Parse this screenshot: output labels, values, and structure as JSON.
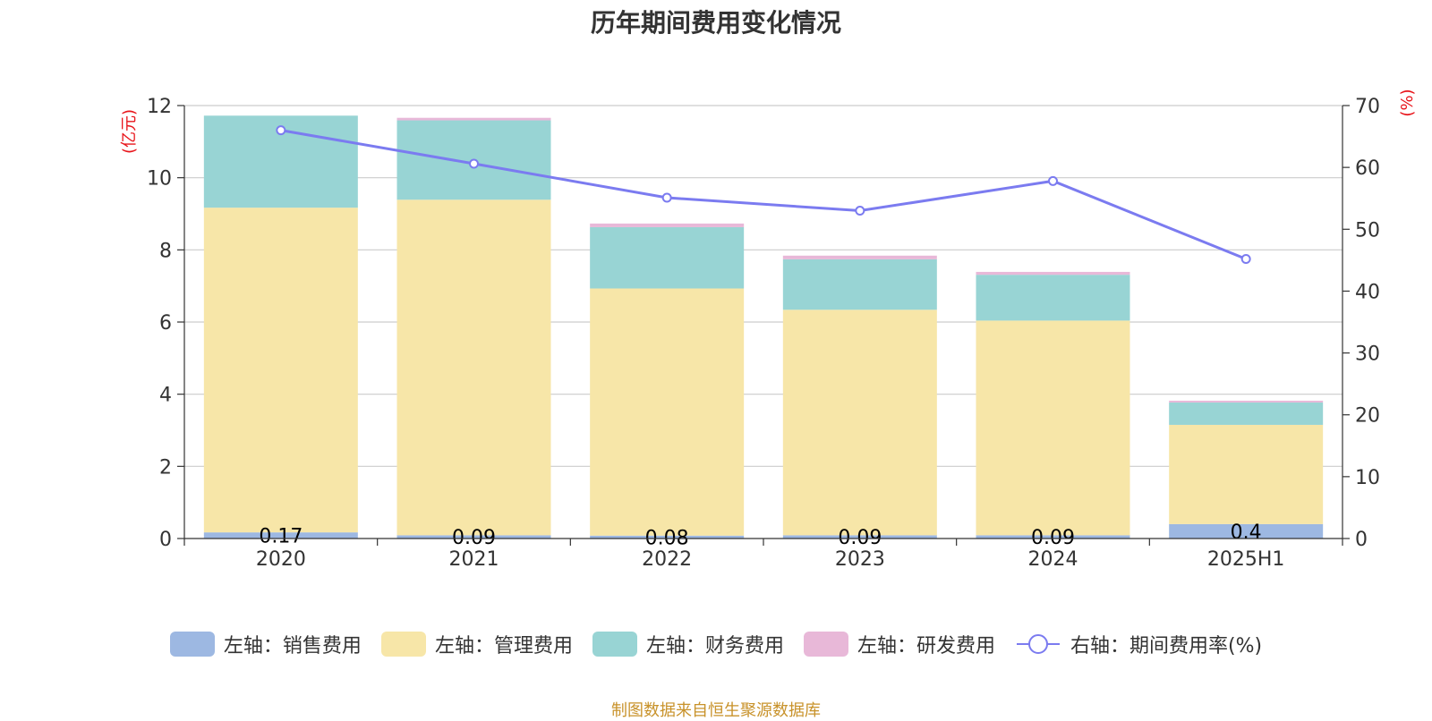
{
  "chart_data": {
    "type": "bar",
    "title": "历年期间费用变化情况",
    "categories": [
      "2020",
      "2021",
      "2022",
      "2023",
      "2024",
      "2025H1"
    ],
    "left_axis": {
      "unit": "(亿元)",
      "ylim": [
        0,
        12
      ],
      "ticks": [
        "0",
        "2",
        "4",
        "6",
        "8",
        "10",
        "12"
      ]
    },
    "right_axis": {
      "unit": "(%)",
      "ylim": [
        0,
        70
      ],
      "ticks": [
        "0",
        "10",
        "20",
        "30",
        "40",
        "50",
        "60",
        "70"
      ]
    },
    "stacked": true,
    "series": [
      {
        "name": "左轴：销售费用",
        "type": "bar",
        "axis": "left",
        "color": "#9db8e2",
        "values": [
          0.17,
          0.09,
          0.08,
          0.09,
          0.09,
          0.4
        ],
        "labels": [
          "0.17",
          "0.09",
          "0.08",
          "0.09",
          "0.09",
          "0.4"
        ]
      },
      {
        "name": "左轴：管理费用",
        "type": "bar",
        "axis": "left",
        "color": "#f7e6a8",
        "values": [
          9.0,
          9.3,
          6.85,
          6.25,
          5.95,
          2.75
        ]
      },
      {
        "name": "左轴：财务费用",
        "type": "bar",
        "axis": "left",
        "color": "#98d4d4",
        "values": [
          2.55,
          2.2,
          1.7,
          1.4,
          1.27,
          0.62
        ]
      },
      {
        "name": "左轴：研发费用",
        "type": "bar",
        "axis": "left",
        "color": "#e8b8d8",
        "values": [
          0.0,
          0.07,
          0.1,
          0.1,
          0.08,
          0.05
        ]
      },
      {
        "name": "右轴：期间费用率(%)",
        "type": "line",
        "axis": "right",
        "color": "#7b7bf0",
        "values": [
          66.0,
          60.6,
          55.1,
          53.0,
          57.8,
          45.2
        ]
      }
    ],
    "grid": true,
    "legend_position": "bottom"
  },
  "source_note": "制图数据来自恒生聚源数据库"
}
